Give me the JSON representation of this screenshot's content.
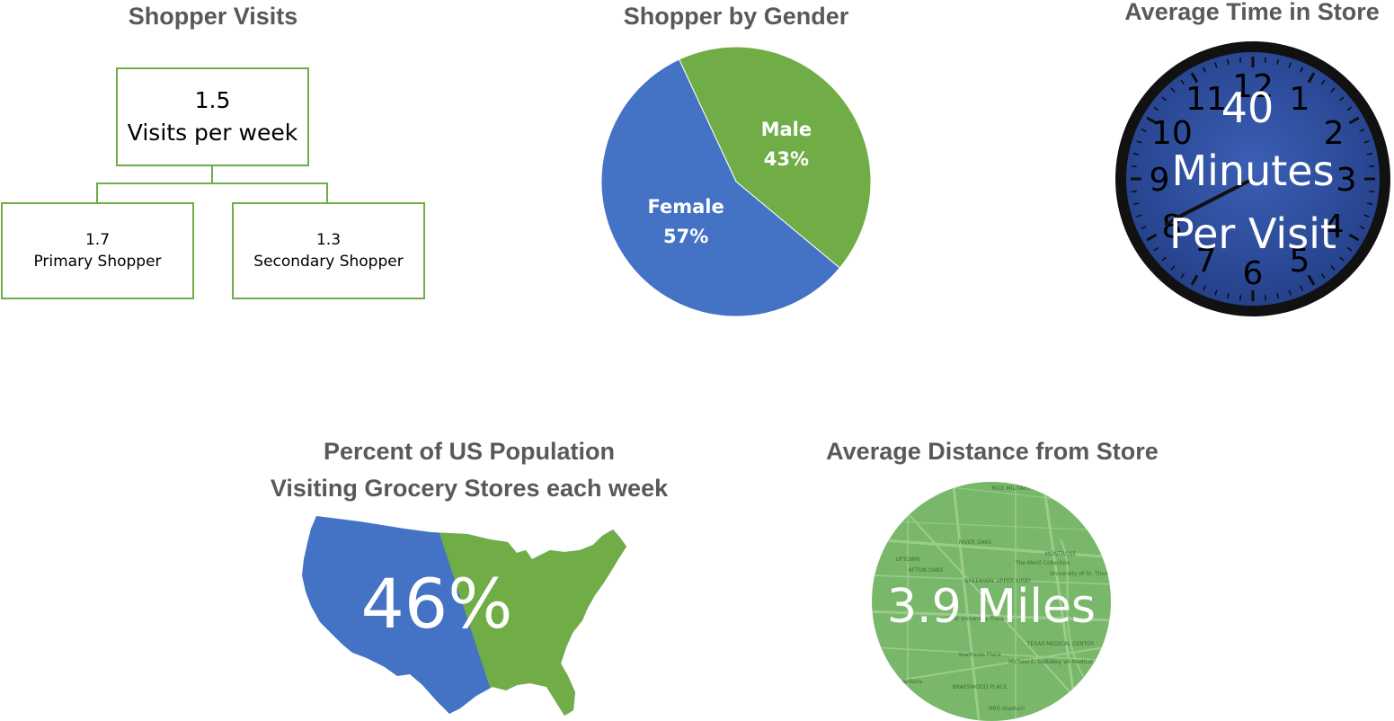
{
  "shopper_visits": {
    "title": "Shopper Visits",
    "root": {
      "value": "1.5",
      "label": "Visits per week"
    },
    "children": [
      {
        "value": "1.7",
        "label": "Primary Shopper"
      },
      {
        "value": "1.3",
        "label": "Secondary Shopper"
      }
    ]
  },
  "gender": {
    "title": "Shopper by Gender",
    "slices": [
      {
        "name": "Male",
        "value": 43,
        "label": "43%",
        "color": "#70ad47"
      },
      {
        "name": "Female",
        "value": 57,
        "label": "57%",
        "color": "#4472c4"
      }
    ]
  },
  "time_in_store": {
    "title": "Average Time in Store",
    "value": "40",
    "line1": "Minutes",
    "line2": "Per Visit",
    "clock_numbers": [
      "12",
      "1",
      "2",
      "3",
      "4",
      "5",
      "6",
      "7",
      "8",
      "9",
      "10",
      "11"
    ],
    "face_color": "#2f4f9f"
  },
  "us_population": {
    "title_line1": "Percent of US Population",
    "title_line2": "Visiting Grocery Stores each week",
    "value": "46%",
    "colors": {
      "left": "#4472c4",
      "right": "#70ad47"
    }
  },
  "distance": {
    "title": "Average Distance from Store",
    "value": "3.9 Miles",
    "map_labels": [
      "RIVER OAKS",
      "MONTROSE",
      "UPTOWN",
      "AFTON OAKS",
      "GREENWAY UPPER KIRBY",
      "The Menil Collection",
      "University of St. Thomas",
      "West University Place",
      "TEXAS MEDICAL CENTER",
      "Southside Place",
      "Bellaire",
      "BRAESWOOD PLACE",
      "NRG Stadium",
      "Michael E. DeBakey VA Medical Center",
      "RICE MILITARY"
    ],
    "color": "#79b86a"
  },
  "chart_data": [
    {
      "type": "pie",
      "title": "Shopper by Gender",
      "categories": [
        "Male",
        "Female"
      ],
      "values": [
        43,
        57
      ]
    },
    {
      "type": "table",
      "title": "Shopper Visits",
      "rows": [
        [
          "Visits per week",
          1.5
        ],
        [
          "Primary Shopper",
          1.7
        ],
        [
          "Secondary Shopper",
          1.3
        ]
      ]
    }
  ]
}
